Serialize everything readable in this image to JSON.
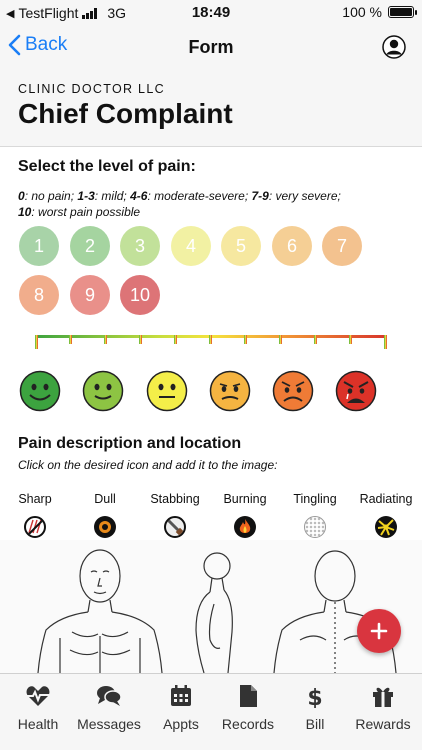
{
  "status_bar": {
    "carrier": "TestFlight",
    "network": "3G",
    "time": "18:49",
    "battery": "100 %"
  },
  "nav": {
    "back_label": "Back",
    "title": "Form"
  },
  "header": {
    "clinic": "CLINIC DOCTOR LLC",
    "title": "Chief Complaint"
  },
  "pain_level": {
    "heading": "Select the level of pain:",
    "legend": [
      {
        "k": "0",
        "v": ": no pain; "
      },
      {
        "k": "1-3",
        "v": ": mild; "
      },
      {
        "k": "4-6",
        "v": ": moderate-severe; "
      },
      {
        "k": "7-9",
        "v": ": very severe;"
      },
      {
        "k": "10",
        "v": ": worst pain possible"
      }
    ],
    "levels": [
      {
        "label": "1",
        "color": "#a8d3a8"
      },
      {
        "label": "2",
        "color": "#a5d4a0"
      },
      {
        "label": "3",
        "color": "#c2e19a"
      },
      {
        "label": "4",
        "color": "#f2f1a3"
      },
      {
        "label": "5",
        "color": "#f6e8a0"
      },
      {
        "label": "6",
        "color": "#f5cf95"
      },
      {
        "label": "7",
        "color": "#f3c28f"
      },
      {
        "label": "8",
        "color": "#f1ad8c"
      },
      {
        "label": "9",
        "color": "#e9908a"
      },
      {
        "label": "10",
        "color": "#dd7477"
      }
    ],
    "faces": [
      {
        "name": "face-1",
        "color": "#3ca33f"
      },
      {
        "name": "face-2",
        "color": "#8dc443"
      },
      {
        "name": "face-3",
        "color": "#f4ee49"
      },
      {
        "name": "face-4",
        "color": "#f5b441"
      },
      {
        "name": "face-5",
        "color": "#ef7b36"
      },
      {
        "name": "face-6",
        "color": "#dc3228"
      }
    ]
  },
  "pain_description": {
    "heading": "Pain description and location",
    "instruction": "Click on the desired icon and add it to the image:",
    "types": [
      {
        "label": "Sharp",
        "icon": "sharp-icon"
      },
      {
        "label": "Dull",
        "icon": "dull-icon"
      },
      {
        "label": "Stabbing",
        "icon": "stabbing-icon"
      },
      {
        "label": "Burning",
        "icon": "burning-icon"
      },
      {
        "label": "Tingling",
        "icon": "tingling-icon"
      },
      {
        "label": "Radiating",
        "icon": "radiating-icon"
      }
    ]
  },
  "fab": {
    "icon": "plus-icon"
  },
  "tabs": [
    {
      "label": "Health",
      "icon": "heart-pulse-icon"
    },
    {
      "label": "Messages",
      "icon": "chat-icon"
    },
    {
      "label": "Appts",
      "icon": "calendar-icon"
    },
    {
      "label": "Records",
      "icon": "document-icon"
    },
    {
      "label": "Bill",
      "icon": "dollar-icon"
    },
    {
      "label": "Rewards",
      "icon": "gift-icon"
    }
  ]
}
